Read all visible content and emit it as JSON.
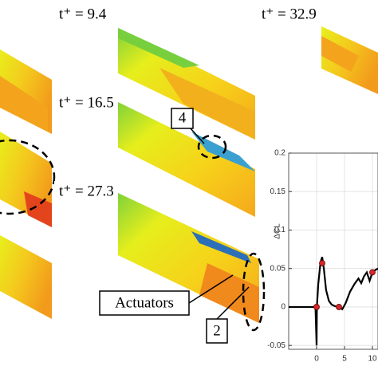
{
  "labels": {
    "t1": "t⁺ = 9.4",
    "t2": "t⁺ = 16.5",
    "t3": "t⁺ = 27.3",
    "t4": "t⁺ = 32.9",
    "callout_4": "4",
    "callout_2": "2",
    "actuators": "Actuators"
  },
  "chart_data": {
    "type": "line",
    "ylabel": "ΔCL",
    "x": [
      -5,
      -1,
      -0.2,
      0,
      0.05,
      0.3,
      0.7,
      1,
      1.3,
      1.7,
      2.2,
      2.7,
      3.3,
      4,
      4.6,
      5.2,
      6,
      6.8,
      7.5,
      8,
      8.5,
      9,
      9.5,
      10,
      10.5,
      11
    ],
    "series": [
      {
        "color": "#000000",
        "values": [
          0,
          0,
          0,
          -0.05,
          0.0,
          0.03,
          0.058,
          0.065,
          0.05,
          0.022,
          0.008,
          0.003,
          0.001,
          0,
          -0.003,
          0.005,
          0.02,
          0.03,
          0.037,
          0.031,
          0.04,
          0.045,
          0.034,
          0.045,
          0.048,
          0.05
        ]
      }
    ],
    "markers": {
      "color": "#d62728",
      "x": [
        0,
        1,
        4,
        10
      ],
      "values": [
        0,
        0.057,
        0,
        0.045
      ]
    },
    "xlim": [
      -5,
      11
    ],
    "ylim": [
      -0.055,
      0.2
    ],
    "xticks": [
      0,
      5,
      10
    ],
    "yticks": [
      -0.05,
      0,
      0.05,
      0.1,
      0.15,
      0.2
    ],
    "grid": true
  }
}
